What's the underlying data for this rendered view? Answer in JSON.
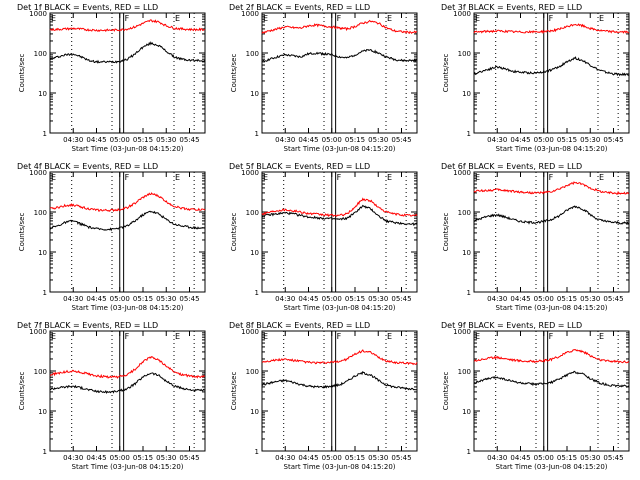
{
  "colors": {
    "events": "#000000",
    "lld": "#ff0000",
    "axis": "#000000",
    "background": "#ffffff"
  },
  "chart_data": [
    {
      "type": "line",
      "title": "Det 1f BLACK = Events, RED = LLD",
      "xlabel": "Start Time (03-Jun-08 04:15:20)",
      "ylabel": "Counts/sec",
      "yscale": "log",
      "ylim": [
        1,
        1000
      ],
      "y_ticks": [
        "1",
        "10",
        "100",
        "1000"
      ],
      "x_ticks": [
        "04:30",
        "04:45",
        "05:00",
        "05:15",
        "05:30",
        "05:45"
      ],
      "xlim_minutes": [
        0,
        100
      ],
      "series": [
        {
          "name": "Events",
          "color": "#000000",
          "x": [
            0,
            5,
            10,
            15,
            20,
            25,
            30,
            35,
            40,
            45,
            50,
            55,
            60,
            65,
            70,
            75,
            80,
            85,
            90,
            95,
            100
          ],
          "values": [
            70,
            80,
            90,
            95,
            80,
            65,
            60,
            60,
            60,
            62,
            70,
            95,
            140,
            175,
            155,
            110,
            80,
            70,
            66,
            65,
            65
          ]
        },
        {
          "name": "LLD",
          "color": "#ff0000",
          "x": [
            0,
            5,
            10,
            15,
            20,
            25,
            30,
            35,
            40,
            45,
            50,
            55,
            60,
            65,
            70,
            75,
            80,
            85,
            90,
            95,
            100
          ],
          "values": [
            380,
            390,
            400,
            410,
            395,
            380,
            370,
            370,
            372,
            380,
            400,
            450,
            550,
            650,
            600,
            480,
            420,
            400,
            390,
            385,
            385
          ]
        }
      ]
    },
    {
      "type": "line",
      "title": "Det 2f BLACK = Events, RED = LLD",
      "xlabel": "Start Time (03-Jun-08 04:15:20)",
      "ylabel": "Counts/sec",
      "yscale": "log",
      "ylim": [
        1,
        1000
      ],
      "y_ticks": [
        "1",
        "10",
        "100",
        "1000"
      ],
      "x_ticks": [
        "04:30",
        "04:45",
        "05:00",
        "05:15",
        "05:30",
        "05:45"
      ],
      "xlim_minutes": [
        0,
        100
      ],
      "series": [
        {
          "name": "Events",
          "color": "#000000",
          "x": [
            0,
            5,
            10,
            15,
            20,
            25,
            30,
            35,
            40,
            45,
            50,
            55,
            60,
            65,
            70,
            75,
            80,
            85,
            90,
            95,
            100
          ],
          "values": [
            60,
            70,
            80,
            90,
            85,
            80,
            95,
            100,
            95,
            90,
            80,
            75,
            90,
            110,
            120,
            100,
            80,
            70,
            65,
            65,
            65
          ]
        },
        {
          "name": "LLD",
          "color": "#ff0000",
          "x": [
            0,
            5,
            10,
            15,
            20,
            25,
            30,
            35,
            40,
            45,
            50,
            55,
            60,
            65,
            70,
            75,
            80,
            85,
            90,
            95,
            100
          ],
          "values": [
            320,
            360,
            400,
            450,
            430,
            420,
            480,
            500,
            470,
            450,
            420,
            400,
            460,
            560,
            620,
            560,
            430,
            360,
            340,
            330,
            330
          ]
        }
      ]
    },
    {
      "type": "line",
      "title": "Det 3f BLACK = Events, RED = LLD",
      "xlabel": "Start Time (03-Jun-08 04:15:20)",
      "ylabel": "Counts/sec",
      "yscale": "log",
      "ylim": [
        1,
        1000
      ],
      "y_ticks": [
        "1",
        "10",
        "100",
        "1000"
      ],
      "x_ticks": [
        "04:30",
        "04:45",
        "05:00",
        "05:15",
        "05:30",
        "05:45"
      ],
      "xlim_minutes": [
        0,
        100
      ],
      "series": [
        {
          "name": "Events",
          "color": "#000000",
          "x": [
            0,
            5,
            10,
            15,
            20,
            25,
            30,
            35,
            40,
            45,
            50,
            55,
            60,
            65,
            70,
            75,
            80,
            85,
            90,
            95,
            100
          ],
          "values": [
            30,
            35,
            40,
            45,
            40,
            35,
            33,
            32,
            32,
            34,
            38,
            45,
            60,
            75,
            65,
            50,
            38,
            33,
            30,
            29,
            29
          ]
        },
        {
          "name": "LLD",
          "color": "#ff0000",
          "x": [
            0,
            5,
            10,
            15,
            20,
            25,
            30,
            35,
            40,
            45,
            50,
            55,
            60,
            65,
            70,
            75,
            80,
            85,
            90,
            95,
            100
          ],
          "values": [
            330,
            340,
            350,
            355,
            350,
            340,
            335,
            335,
            338,
            345,
            360,
            390,
            450,
            520,
            480,
            410,
            370,
            350,
            340,
            335,
            335
          ]
        }
      ]
    },
    {
      "type": "line",
      "title": "Det 4f BLACK = Events, RED = LLD",
      "xlabel": "Start Time (03-Jun-08 04:15:20)",
      "ylabel": "Counts/sec",
      "yscale": "log",
      "ylim": [
        1,
        1000
      ],
      "y_ticks": [
        "1",
        "10",
        "100",
        "1000"
      ],
      "x_ticks": [
        "04:30",
        "04:45",
        "05:00",
        "05:15",
        "05:30",
        "05:45"
      ],
      "xlim_minutes": [
        0,
        100
      ],
      "series": [
        {
          "name": "Events",
          "color": "#000000",
          "x": [
            0,
            5,
            10,
            15,
            20,
            25,
            30,
            35,
            40,
            45,
            50,
            55,
            60,
            65,
            70,
            75,
            80,
            85,
            90,
            95,
            100
          ],
          "values": [
            40,
            45,
            55,
            60,
            50,
            42,
            38,
            37,
            37,
            40,
            45,
            60,
            85,
            105,
            90,
            65,
            50,
            45,
            42,
            40,
            40
          ]
        },
        {
          "name": "LLD",
          "color": "#ff0000",
          "x": [
            0,
            5,
            10,
            15,
            20,
            25,
            30,
            35,
            40,
            45,
            50,
            55,
            60,
            65,
            70,
            75,
            80,
            85,
            90,
            95,
            100
          ],
          "values": [
            120,
            130,
            145,
            150,
            135,
            120,
            112,
            110,
            110,
            115,
            130,
            165,
            230,
            290,
            250,
            180,
            140,
            125,
            118,
            115,
            115
          ]
        }
      ]
    },
    {
      "type": "line",
      "title": "Det 5f BLACK = Events, RED = LLD",
      "xlabel": "Start Time (03-Jun-08 04:15:20)",
      "ylabel": "Counts/sec",
      "yscale": "log",
      "ylim": [
        1,
        1000
      ],
      "y_ticks": [
        "1",
        "10",
        "100",
        "1000"
      ],
      "x_ticks": [
        "04:30",
        "04:45",
        "05:00",
        "05:15",
        "05:30",
        "05:45"
      ],
      "xlim_minutes": [
        0,
        100
      ],
      "series": [
        {
          "name": "Events",
          "color": "#000000",
          "x": [
            0,
            5,
            10,
            15,
            20,
            25,
            30,
            35,
            40,
            45,
            50,
            55,
            60,
            65,
            70,
            75,
            80,
            85,
            90,
            95,
            100
          ],
          "values": [
            80,
            85,
            90,
            95,
            90,
            82,
            75,
            72,
            70,
            68,
            65,
            70,
            95,
            140,
            120,
            80,
            60,
            55,
            52,
            50,
            50
          ]
        },
        {
          "name": "LLD",
          "color": "#ff0000",
          "x": [
            0,
            5,
            10,
            15,
            20,
            25,
            30,
            35,
            40,
            45,
            50,
            55,
            60,
            65,
            70,
            75,
            80,
            85,
            90,
            95,
            100
          ],
          "values": [
            90,
            100,
            110,
            115,
            108,
            100,
            92,
            88,
            85,
            83,
            82,
            90,
            130,
            210,
            190,
            130,
            100,
            90,
            85,
            82,
            82
          ]
        }
      ]
    },
    {
      "type": "line",
      "title": "Det 6f BLACK = Events, RED = LLD",
      "xlabel": "Start Time (03-Jun-08 04:15:20)",
      "ylabel": "Counts/sec",
      "yscale": "log",
      "ylim": [
        1,
        1000
      ],
      "y_ticks": [
        "1",
        "10",
        "100",
        "1000"
      ],
      "x_ticks": [
        "04:30",
        "04:45",
        "05:00",
        "05:15",
        "05:30",
        "05:45"
      ],
      "xlim_minutes": [
        0,
        100
      ],
      "series": [
        {
          "name": "Events",
          "color": "#000000",
          "x": [
            0,
            5,
            10,
            15,
            20,
            25,
            30,
            35,
            40,
            45,
            50,
            55,
            60,
            65,
            70,
            75,
            80,
            85,
            90,
            95,
            100
          ],
          "values": [
            60,
            70,
            80,
            85,
            75,
            65,
            58,
            55,
            55,
            58,
            65,
            80,
            110,
            140,
            120,
            85,
            65,
            58,
            55,
            53,
            53
          ]
        },
        {
          "name": "LLD",
          "color": "#ff0000",
          "x": [
            0,
            5,
            10,
            15,
            20,
            25,
            30,
            35,
            40,
            45,
            50,
            55,
            60,
            65,
            70,
            75,
            80,
            85,
            90,
            95,
            100
          ],
          "values": [
            330,
            340,
            350,
            360,
            345,
            330,
            315,
            305,
            300,
            305,
            320,
            370,
            460,
            540,
            490,
            400,
            340,
            310,
            300,
            295,
            295
          ]
        }
      ]
    },
    {
      "type": "line",
      "title": "Det 7f BLACK = Events, RED = LLD",
      "xlabel": "Start Time (03-Jun-08 04:15:20)",
      "ylabel": "Counts/sec",
      "yscale": "log",
      "ylim": [
        1,
        1000
      ],
      "y_ticks": [
        "1",
        "10",
        "100",
        "1000"
      ],
      "x_ticks": [
        "04:30",
        "04:45",
        "05:00",
        "05:15",
        "05:30",
        "05:45"
      ],
      "xlim_minutes": [
        0,
        100
      ],
      "series": [
        {
          "name": "Events",
          "color": "#000000",
          "x": [
            0,
            5,
            10,
            15,
            20,
            25,
            30,
            35,
            40,
            45,
            50,
            55,
            60,
            65,
            70,
            75,
            80,
            85,
            90,
            95,
            100
          ],
          "values": [
            35,
            38,
            40,
            42,
            38,
            34,
            31,
            30,
            30,
            32,
            36,
            48,
            70,
            90,
            78,
            55,
            42,
            37,
            34,
            33,
            33
          ]
        },
        {
          "name": "LLD",
          "color": "#ff0000",
          "x": [
            0,
            5,
            10,
            15,
            20,
            25,
            30,
            35,
            40,
            45,
            50,
            55,
            60,
            65,
            70,
            75,
            80,
            85,
            90,
            95,
            100
          ],
          "values": [
            80,
            88,
            95,
            100,
            92,
            84,
            76,
            72,
            70,
            72,
            80,
            110,
            170,
            220,
            190,
            130,
            95,
            82,
            75,
            72,
            72
          ]
        }
      ]
    },
    {
      "type": "line",
      "title": "Det 8f BLACK = Events, RED = LLD",
      "xlabel": "Start Time (03-Jun-08 04:15:20)",
      "ylabel": "Counts/sec",
      "yscale": "log",
      "ylim": [
        1,
        1000
      ],
      "y_ticks": [
        "1",
        "10",
        "100",
        "1000"
      ],
      "x_ticks": [
        "04:30",
        "04:45",
        "05:00",
        "05:15",
        "05:30",
        "05:45"
      ],
      "xlim_minutes": [
        0,
        100
      ],
      "series": [
        {
          "name": "Events",
          "color": "#000000",
          "x": [
            0,
            5,
            10,
            15,
            20,
            25,
            30,
            35,
            40,
            45,
            50,
            55,
            60,
            65,
            70,
            75,
            80,
            85,
            90,
            95,
            100
          ],
          "values": [
            45,
            50,
            55,
            58,
            52,
            46,
            42,
            40,
            40,
            42,
            45,
            55,
            75,
            90,
            80,
            58,
            45,
            40,
            38,
            36,
            36
          ]
        },
        {
          "name": "LLD",
          "color": "#ff0000",
          "x": [
            0,
            5,
            10,
            15,
            20,
            25,
            30,
            35,
            40,
            45,
            50,
            55,
            60,
            65,
            70,
            75,
            80,
            85,
            90,
            95,
            100
          ],
          "values": [
            170,
            180,
            190,
            195,
            185,
            175,
            165,
            160,
            160,
            165,
            175,
            200,
            260,
            320,
            290,
            220,
            180,
            165,
            160,
            155,
            155
          ]
        }
      ]
    },
    {
      "type": "line",
      "title": "Det 9f BLACK = Events, RED = LLD",
      "xlabel": "Start Time (03-Jun-08 04:15:20)",
      "ylabel": "Counts/sec",
      "yscale": "log",
      "ylim": [
        1,
        1000
      ],
      "y_ticks": [
        "1",
        "10",
        "100",
        "1000"
      ],
      "x_ticks": [
        "04:30",
        "04:45",
        "05:00",
        "05:15",
        "05:30",
        "05:45"
      ],
      "xlim_minutes": [
        0,
        100
      ],
      "series": [
        {
          "name": "Events",
          "color": "#000000",
          "x": [
            0,
            5,
            10,
            15,
            20,
            25,
            30,
            35,
            40,
            45,
            50,
            55,
            60,
            65,
            70,
            75,
            80,
            85,
            90,
            95,
            100
          ],
          "values": [
            50,
            58,
            65,
            70,
            62,
            55,
            50,
            48,
            47,
            48,
            52,
            62,
            80,
            95,
            85,
            65,
            52,
            46,
            43,
            42,
            42
          ]
        },
        {
          "name": "LLD",
          "color": "#ff0000",
          "x": [
            0,
            5,
            10,
            15,
            20,
            25,
            30,
            35,
            40,
            45,
            50,
            55,
            60,
            65,
            70,
            75,
            80,
            85,
            90,
            95,
            100
          ],
          "values": [
            180,
            195,
            210,
            220,
            205,
            190,
            180,
            175,
            175,
            180,
            195,
            230,
            290,
            340,
            310,
            240,
            195,
            180,
            175,
            170,
            170
          ]
        }
      ]
    }
  ]
}
